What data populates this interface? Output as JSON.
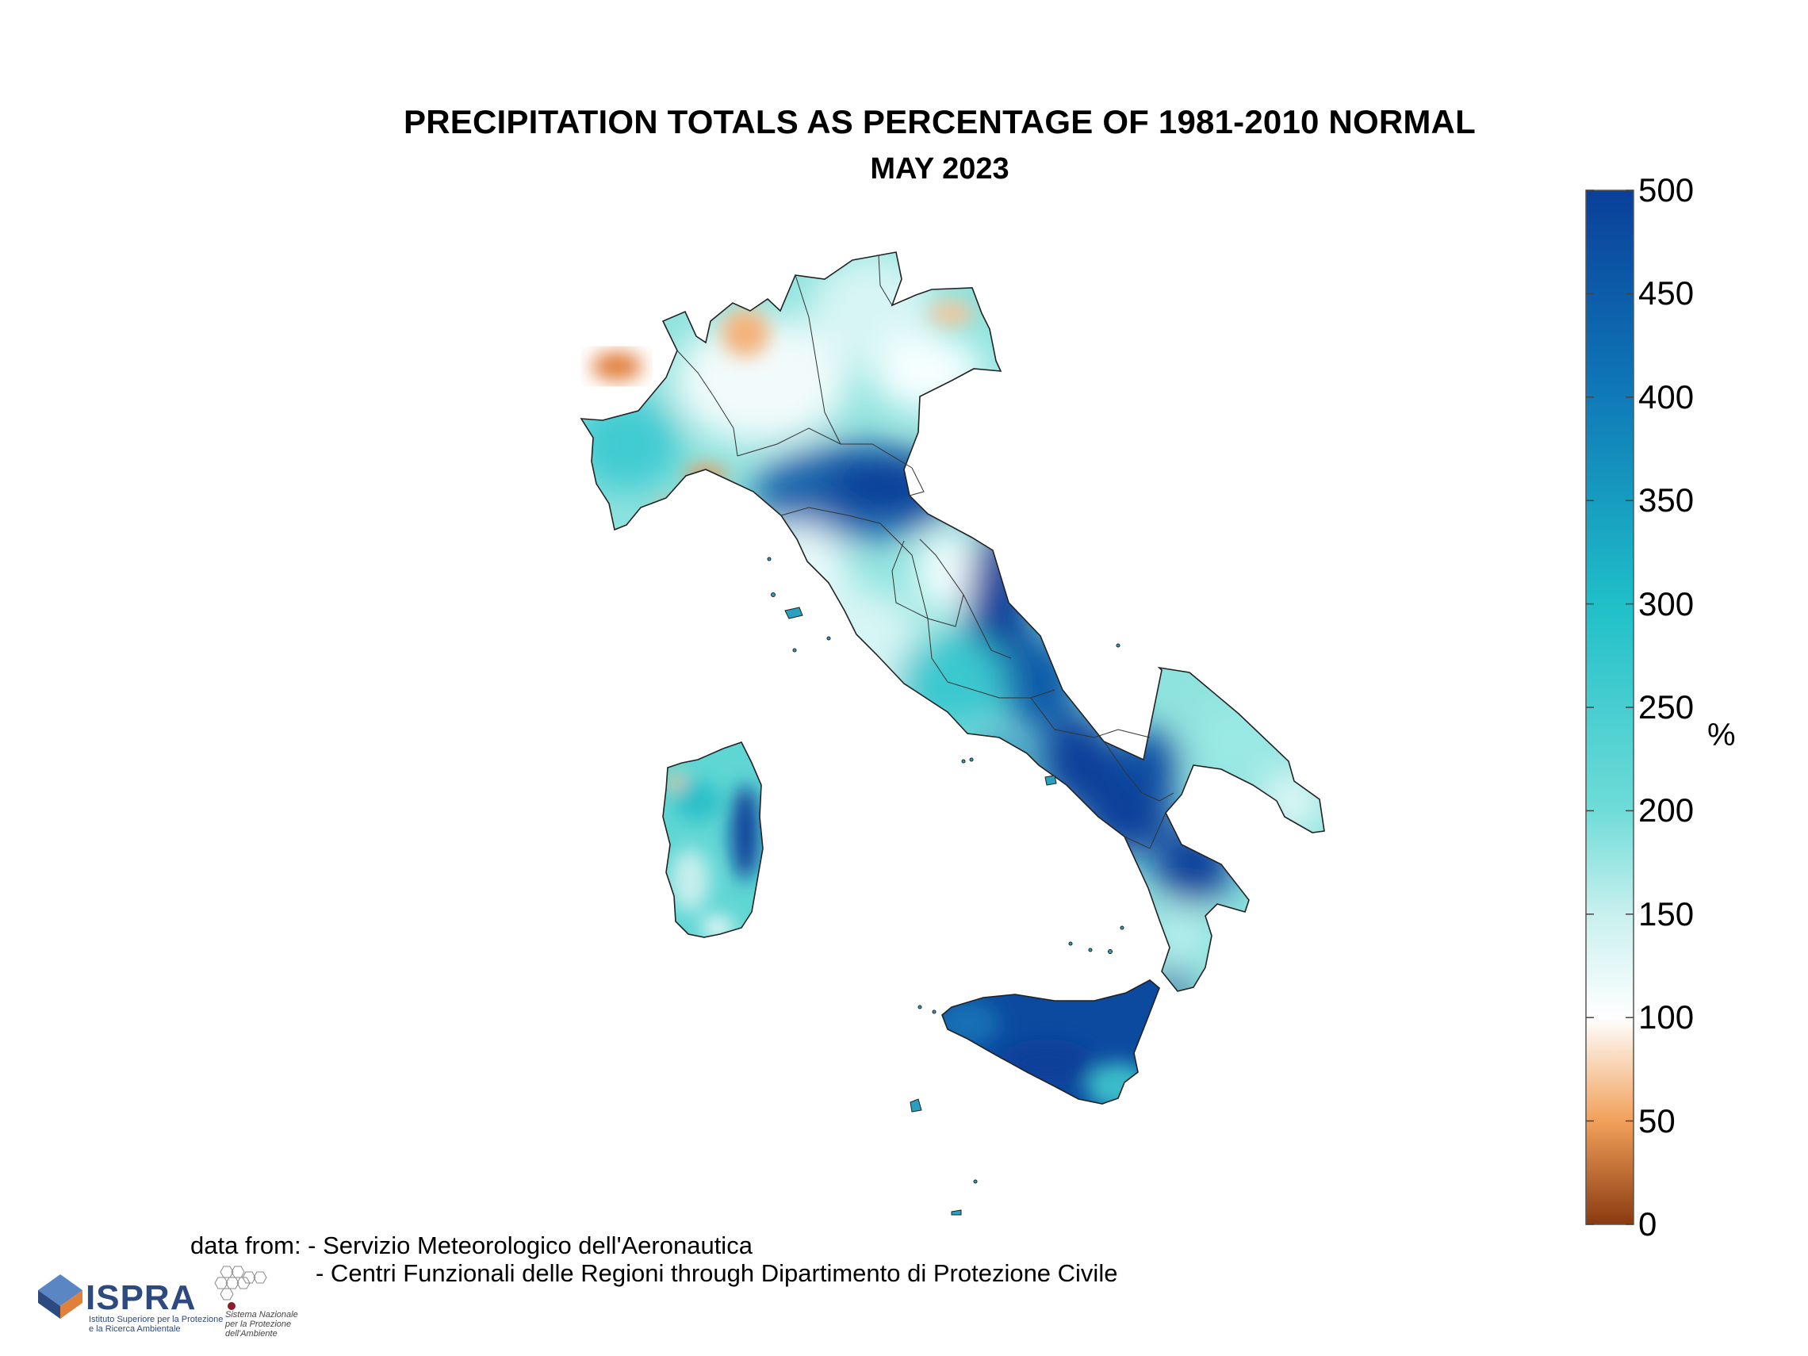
{
  "header": {
    "title": "PRECIPITATION TOTALS AS PERCENTAGE OF 1981-2010 NORMAL",
    "subtitle": "MAY 2023"
  },
  "colorbar": {
    "unit": "%",
    "min": 0,
    "max": 500,
    "ticks": [
      "500",
      "450",
      "400",
      "350",
      "300",
      "250",
      "200",
      "150",
      "100",
      "50",
      "0"
    ],
    "colors": {
      "0": "#8a3a10",
      "50": "#f2a05a",
      "100": "#ffffff",
      "150": "#c8f0ee",
      "200": "#6fdcd8",
      "300": "#1fbfc8",
      "400": "#0f7ab8",
      "500": "#0a3f9a"
    }
  },
  "credits": {
    "line1": "data from: - Servizio Meteorologico dell'Aeronautica",
    "line2": "- Centri Funzionali delle Regioni through Dipartimento di Protezione Civile"
  },
  "logos": {
    "ispra_name": "ISPRA",
    "ispra_tagline_1": "Istituto Superiore per la Protezione",
    "ispra_tagline_2": "e la Ricerca Ambientale",
    "snpa_tagline_1": "Sistema Nazionale",
    "snpa_tagline_2": "per la Protezione",
    "snpa_tagline_3": "dell'Ambiente"
  }
}
